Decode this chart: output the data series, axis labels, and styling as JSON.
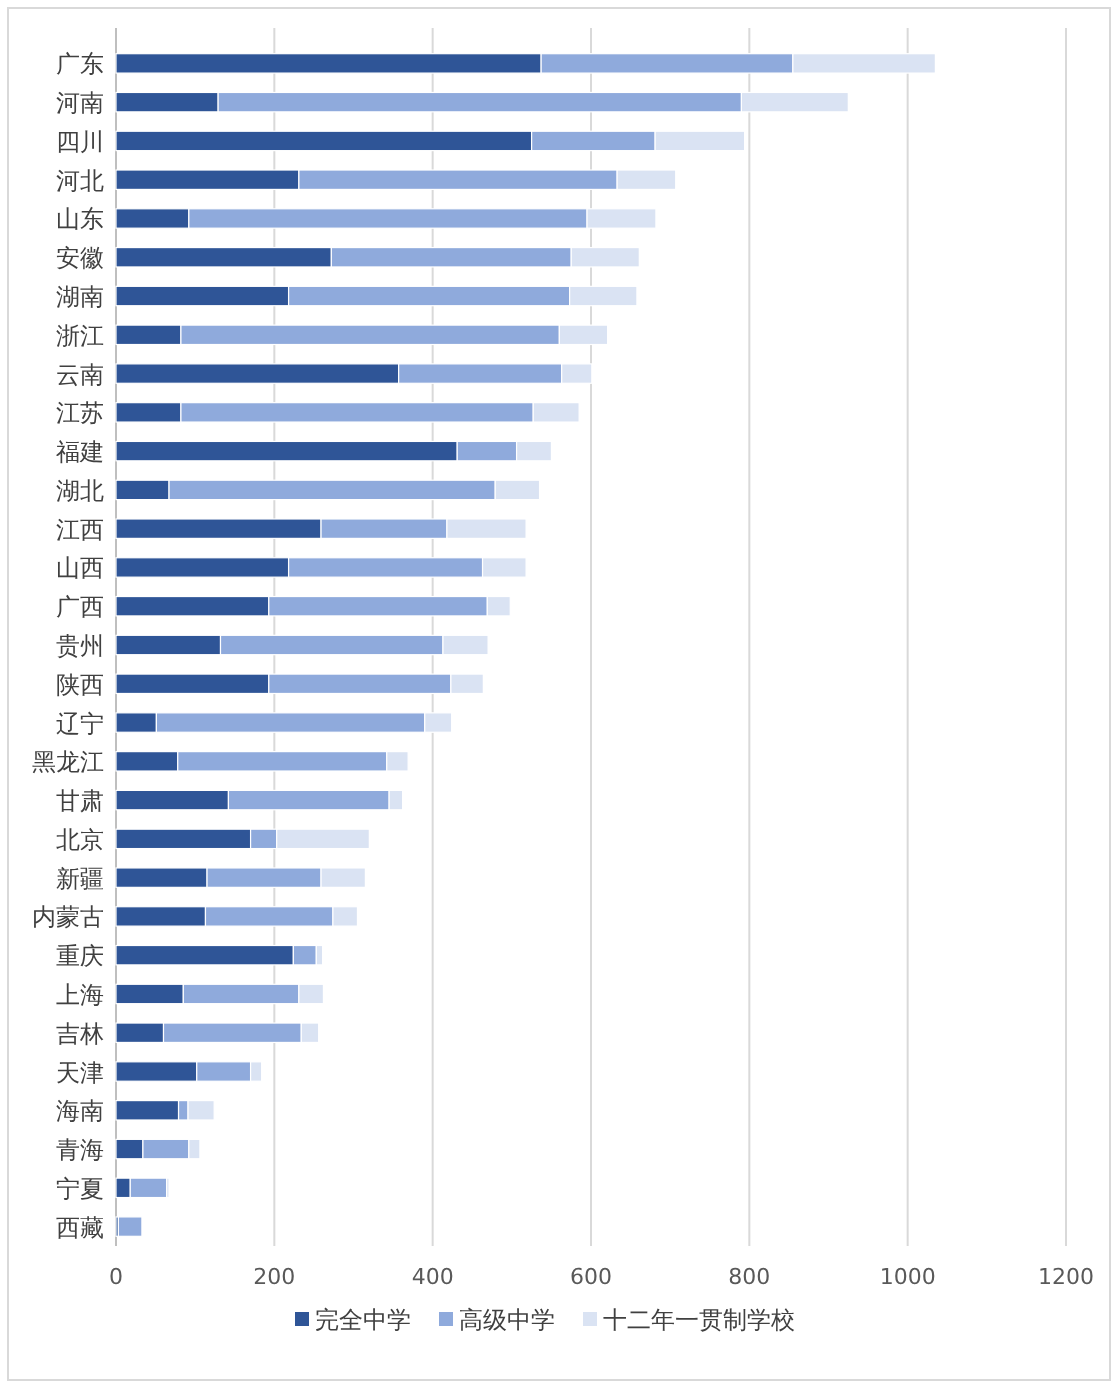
{
  "chart_data": {
    "type": "bar",
    "orientation": "horizontal",
    "stacked": true,
    "categories": [
      "广东",
      "河南",
      "四川",
      "河北",
      "山东",
      "安徽",
      "湖南",
      "浙江",
      "云南",
      "江苏",
      "福建",
      "湖北",
      "江西",
      "山西",
      "广西",
      "贵州",
      "陕西",
      "辽宁",
      "黑龙江",
      "甘肃",
      "北京",
      "新疆",
      "内蒙古",
      "重庆",
      "上海",
      "吉林",
      "天津",
      "海南",
      "青海",
      "宁夏",
      "西藏"
    ],
    "series": [
      {
        "name": "完全中学",
        "color": "#2f5597",
        "values": [
          537,
          129,
          525,
          231,
          92,
          272,
          218,
          82,
          357,
          82,
          431,
          67,
          259,
          218,
          193,
          132,
          193,
          51,
          78,
          142,
          170,
          115,
          113,
          224,
          85,
          60,
          102,
          79,
          34,
          18,
          3
        ]
      },
      {
        "name": "高级中学",
        "color": "#8faadc",
        "values": [
          318,
          661,
          156,
          402,
          503,
          303,
          355,
          478,
          206,
          445,
          75,
          412,
          159,
          245,
          276,
          281,
          230,
          339,
          264,
          203,
          33,
          144,
          161,
          29,
          146,
          174,
          68,
          12,
          58,
          46,
          30
        ]
      },
      {
        "name": "十二年一贯制学校",
        "color": "#dae3f3",
        "values": [
          180,
          135,
          113,
          74,
          87,
          86,
          85,
          61,
          38,
          58,
          44,
          56,
          100,
          55,
          29,
          57,
          41,
          34,
          27,
          17,
          117,
          56,
          31,
          8,
          31,
          22,
          14,
          33,
          14,
          3,
          1
        ]
      }
    ],
    "xlim": [
      0,
      1200
    ],
    "xticks": [
      0,
      200,
      400,
      600,
      800,
      1000,
      1200
    ],
    "grid": "x",
    "legend": "bottom"
  }
}
